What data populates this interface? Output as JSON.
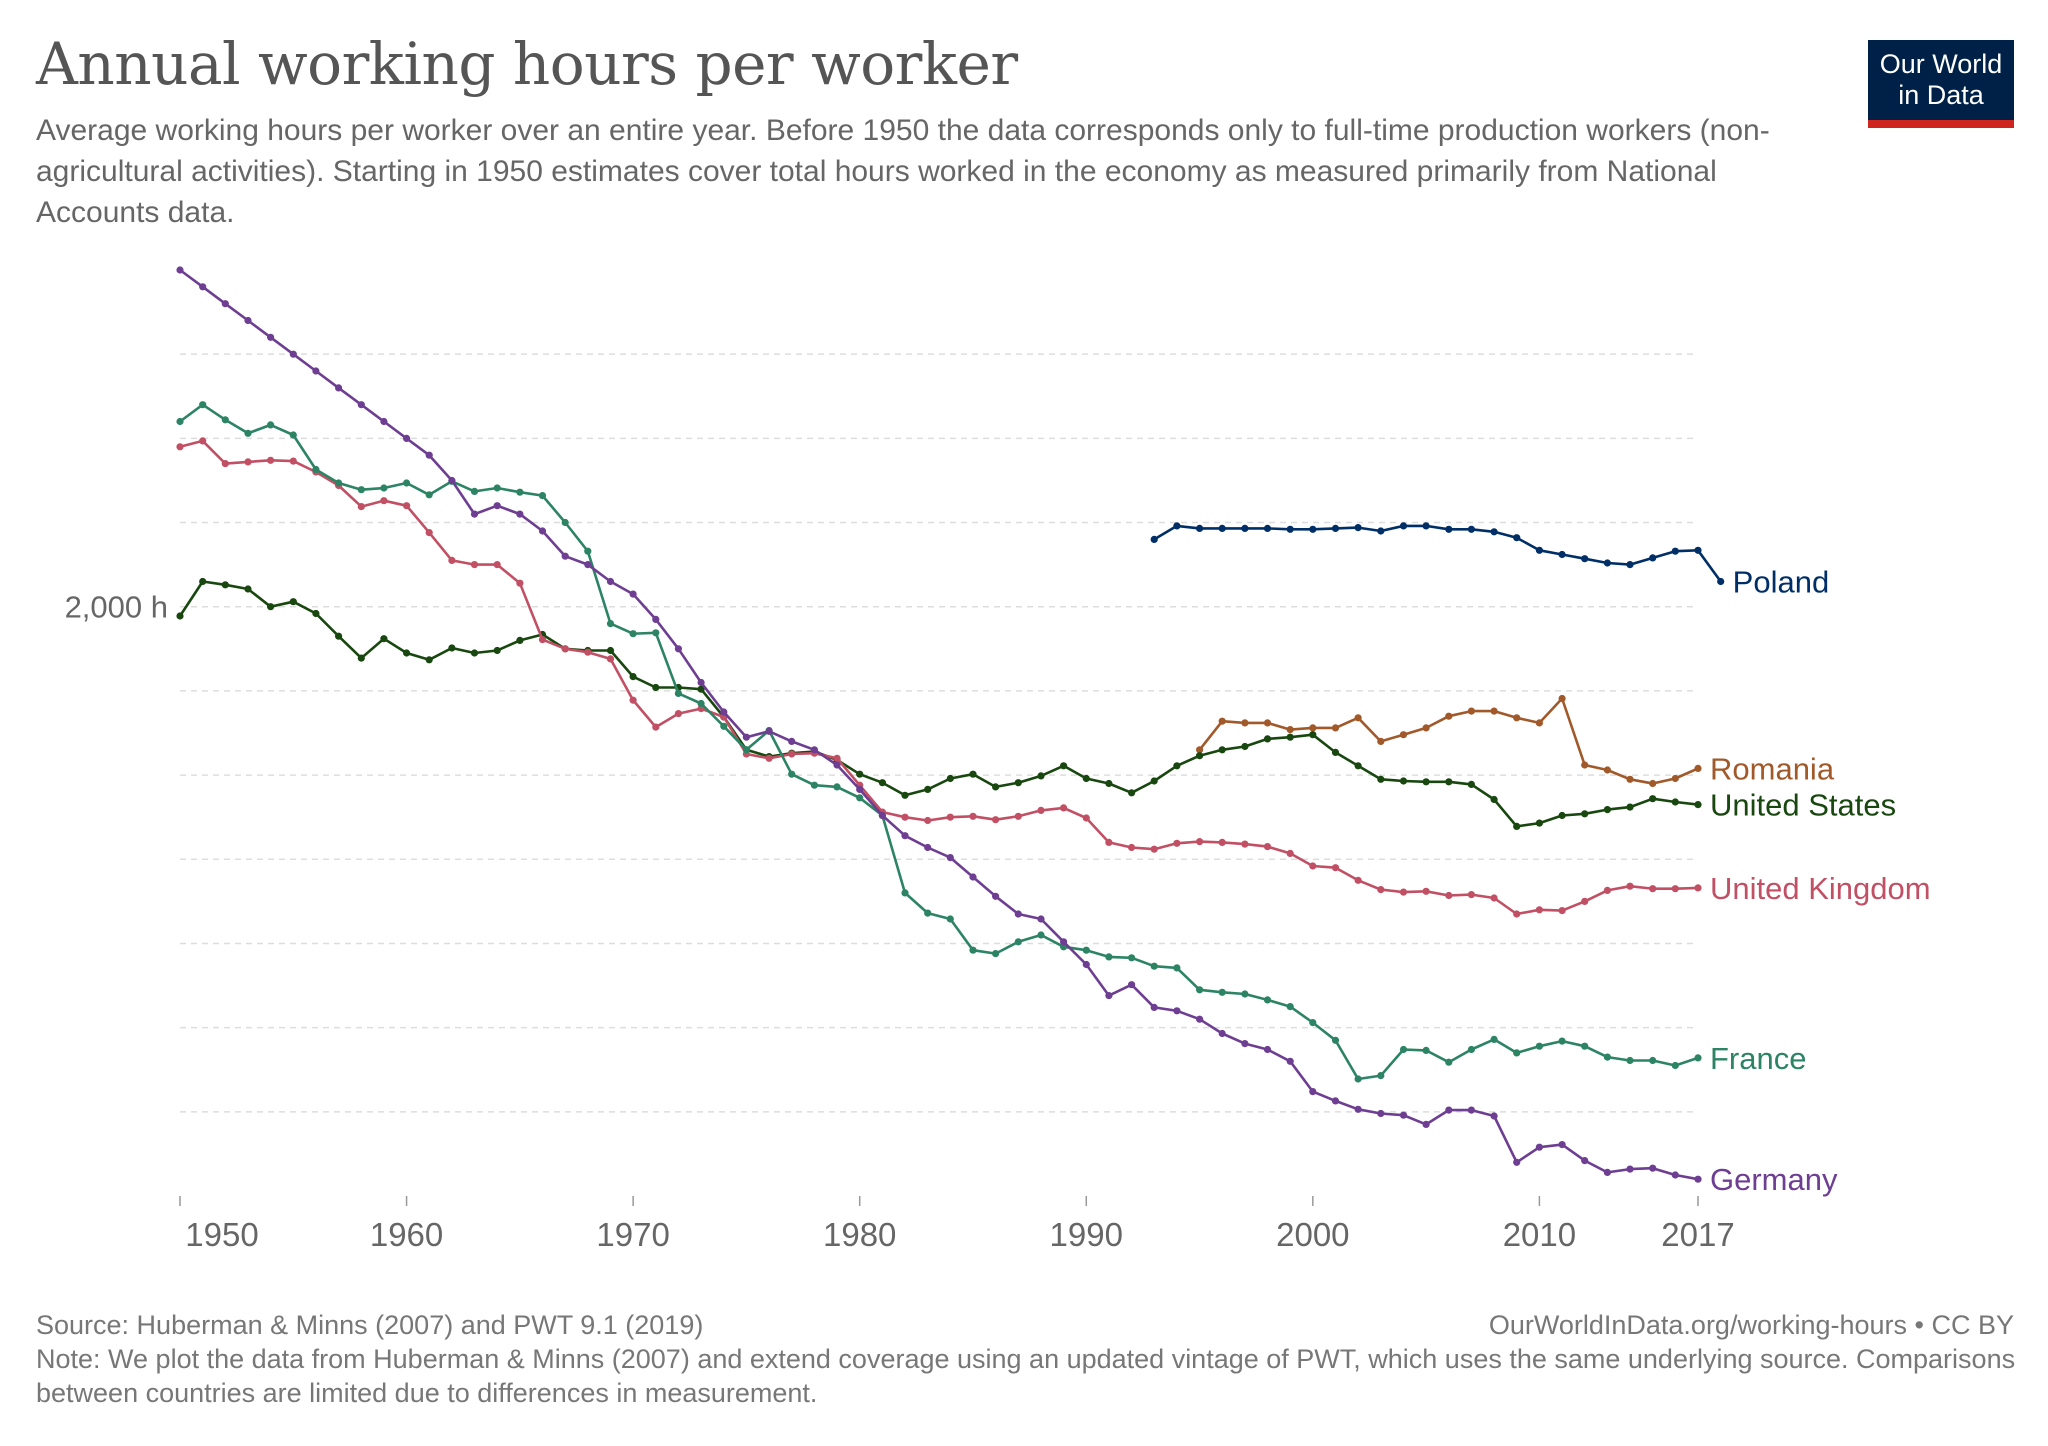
{
  "header": {
    "title": "Annual working hours per worker",
    "subtitle": "Average working hours per worker over an entire year. Before 1950 the data corresponds only to full-time production workers (non-agricultural activities). Starting in 1950 estimates cover total hours worked in the economy as measured primarily from National Accounts data.",
    "logo_line1": "Our World",
    "logo_line2": "in Data",
    "logo_bg": "#002147",
    "logo_accent": "#ce261e"
  },
  "footer": {
    "source": "Source: Huberman & Minns (2007) and PWT 9.1 (2019)",
    "url": "OurWorldInData.org/working-hours • CC BY",
    "note": "Note: We plot the data from Huberman & Minns (2007) and extend coverage using an updated vintage of PWT, which uses the same underlying source. Comparisons between countries are limited due to differences in measurement."
  },
  "chart_data": {
    "type": "line",
    "title": "Annual working hours per worker",
    "xlabel": "",
    "ylabel": "",
    "x_ticks": [
      1950,
      1960,
      1970,
      1980,
      1990,
      2000,
      2010,
      2017
    ],
    "y_ticks": [
      2000
    ],
    "y_tick_labels": [
      "2,000 h"
    ],
    "xlim": [
      1950,
      2017
    ],
    "ylim": [
      1300,
      2400
    ],
    "grid": "horizontal-dashed",
    "legend": "line-end labels",
    "series": [
      {
        "name": "Poland",
        "color": "#002f68",
        "start": 1993,
        "values": [
          2080,
          2096,
          2093,
          2093,
          2093,
          2093,
          2092,
          2092,
          2093,
          2094,
          2090,
          2096,
          2096,
          2092,
          2092,
          2089,
          2082,
          2067,
          2062,
          2057,
          2052,
          2050,
          2058,
          2066,
          2067,
          2030
        ]
      },
      {
        "name": "Romania",
        "color": "#a2592a",
        "start": 1995,
        "values": [
          1830,
          1864,
          1862,
          1862,
          1854,
          1856,
          1856,
          1868,
          1840,
          1848,
          1856,
          1870,
          1876,
          1876,
          1868,
          1862,
          1891,
          1812,
          1806,
          1795,
          1790,
          1796,
          1808
        ]
      },
      {
        "name": "United States",
        "color": "#18470f",
        "start": 1950,
        "values": [
          1989,
          2030,
          2026,
          2021,
          2000,
          2006,
          1992,
          1965,
          1939,
          1962,
          1945,
          1937,
          1951,
          1945,
          1948,
          1960,
          1967,
          1950,
          1948,
          1948,
          1917,
          1904,
          1904,
          1902,
          1869,
          1830,
          1822,
          1826,
          1828,
          1818,
          1801,
          1791,
          1776,
          1783,
          1796,
          1801,
          1786,
          1791,
          1799,
          1811,
          1796,
          1790,
          1779,
          1793,
          1811,
          1823,
          1830,
          1834,
          1843,
          1845,
          1848,
          1827,
          1811,
          1795,
          1793,
          1792,
          1792,
          1789,
          1771,
          1739,
          1743,
          1752,
          1754,
          1759,
          1762,
          1772,
          1768,
          1765
        ]
      },
      {
        "name": "United Kingdom",
        "color": "#c15065",
        "start": 1950,
        "values": [
          2190,
          2197,
          2170,
          2172,
          2174,
          2173,
          2160,
          2144,
          2119,
          2126,
          2120,
          2088,
          2055,
          2050,
          2050,
          2028,
          1961,
          1950,
          1946,
          1938,
          1889,
          1857,
          1873,
          1879,
          1869,
          1825,
          1820,
          1825,
          1826,
          1820,
          1788,
          1756,
          1750,
          1746,
          1750,
          1751,
          1747,
          1751,
          1758,
          1761,
          1749,
          1720,
          1714,
          1712,
          1719,
          1721,
          1720,
          1718,
          1715,
          1707,
          1692,
          1690,
          1675,
          1664,
          1661,
          1662,
          1657,
          1658,
          1654,
          1635,
          1640,
          1639,
          1650,
          1663,
          1668,
          1665,
          1665,
          1666
        ]
      },
      {
        "name": "France",
        "color": "#2c8465",
        "start": 1950,
        "values": [
          2220,
          2240,
          2222,
          2206,
          2216,
          2204,
          2163,
          2147,
          2139,
          2141,
          2147,
          2133,
          2149,
          2137,
          2141,
          2136,
          2132,
          2100,
          2066,
          1980,
          1968,
          1969,
          1897,
          1885,
          1858,
          1830,
          1853,
          1801,
          1788,
          1786,
          1773,
          1752,
          1660,
          1636,
          1629,
          1592,
          1588,
          1602,
          1610,
          1596,
          1592,
          1584,
          1583,
          1573,
          1571,
          1545,
          1542,
          1540,
          1533,
          1525,
          1506,
          1485,
          1439,
          1443,
          1474,
          1473,
          1459,
          1474,
          1486,
          1470,
          1478,
          1484,
          1478,
          1465,
          1461,
          1461,
          1455,
          1464
        ]
      },
      {
        "name": "Germany",
        "color": "#6d3e91",
        "start": 1950,
        "values": [
          2400,
          2380,
          2360,
          2340,
          2320,
          2300,
          2280,
          2260,
          2240,
          2220,
          2200,
          2180,
          2150,
          2110,
          2120,
          2110,
          2090,
          2060,
          2050,
          2030,
          2015,
          1985,
          1950,
          1910,
          1875,
          1845,
          1852,
          1840,
          1830,
          1812,
          1783,
          1752,
          1728,
          1714,
          1702,
          1679,
          1656,
          1635,
          1629,
          1602,
          1575,
          1538,
          1551,
          1524,
          1520,
          1510,
          1493,
          1481,
          1474,
          1460,
          1424,
          1413,
          1403,
          1398,
          1396,
          1385,
          1402,
          1402,
          1395,
          1340,
          1358,
          1361,
          1342,
          1328,
          1332,
          1333,
          1325,
          1320
        ]
      }
    ]
  }
}
